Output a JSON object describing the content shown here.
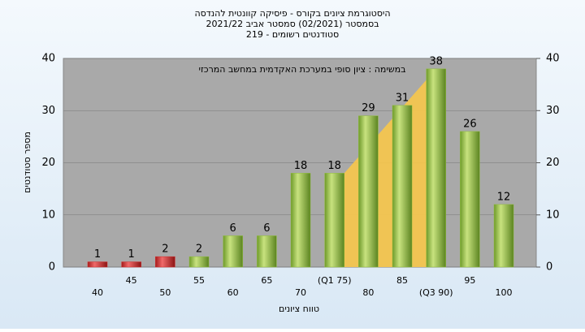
{
  "chart_data": {
    "type": "bar",
    "title": "היסטוגרמת ציונים בקורס - פיסיקה קוונטית להנדסה",
    "subtitle": "בסמסטר  (02/2021)  סמסטר אביב 2021/22",
    "subtitle2": "סטודנטים רשומים - 219",
    "annotation": "במשימה : ציון סופי במערכת האקדמית במחשב המרכזי",
    "x_label": "טווח ציונים",
    "y_label": "מספר סטודנטים",
    "categories": [
      "40",
      "45",
      "50",
      "55",
      "60",
      "65",
      "70",
      "(Q1 75)",
      "80",
      "85",
      "(Q3 90)",
      "95",
      "100"
    ],
    "values": [
      1,
      1,
      2,
      2,
      6,
      6,
      18,
      18,
      29,
      31,
      38,
      26,
      12
    ],
    "colors": [
      "#d42a2a",
      "#d42a2a",
      "#d42a2a",
      "#8fbd3a",
      "#8fbd3a",
      "#8fbd3a",
      "#8fbd3a",
      "#8fbd3a",
      "#8fbd3a",
      "#8fbd3a",
      "#8fbd3a",
      "#8fbd3a",
      "#8fbd3a"
    ],
    "ylim": [
      0,
      40
    ],
    "yticks": [
      0,
      10,
      20,
      30,
      40
    ],
    "y2lim": [
      0,
      40
    ],
    "y2ticks": [
      0,
      10,
      20,
      30,
      40
    ],
    "grid": true
  }
}
